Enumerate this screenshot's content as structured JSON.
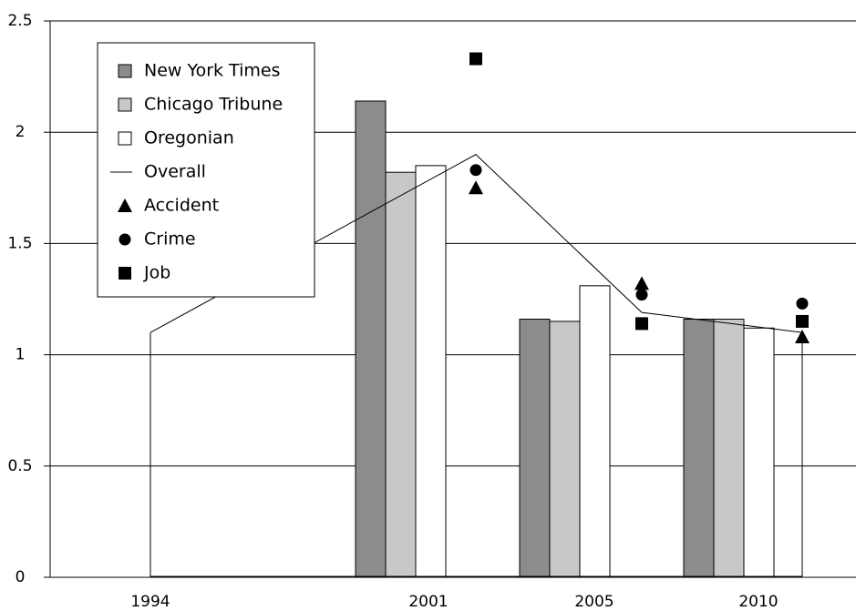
{
  "chart_data": {
    "type": "bar",
    "categories": [
      "1994",
      "2001",
      "2005",
      "2010"
    ],
    "ylim": [
      0,
      2.5
    ],
    "yticks": [
      0,
      0.5,
      1,
      1.5,
      2,
      2.5
    ],
    "grid": true,
    "legend": "upper left",
    "series": [
      {
        "name": "New York Times",
        "kind": "bar",
        "color": "#8c8c8c",
        "values": [
          null,
          2.14,
          1.16,
          1.16
        ]
      },
      {
        "name": "Chicago Tribune",
        "kind": "bar",
        "color": "#c8c8c8",
        "values": [
          null,
          1.82,
          1.15,
          1.16
        ]
      },
      {
        "name": "Oregonian",
        "kind": "bar",
        "color": "#ffffff",
        "values": [
          null,
          1.85,
          1.31,
          1.12
        ]
      },
      {
        "name": "Overall",
        "kind": "line",
        "color": "#000000",
        "values": [
          1.1,
          1.9,
          1.19,
          1.1
        ]
      },
      {
        "name": "Accident",
        "kind": "marker",
        "marker": "triangle",
        "color": "#000000",
        "values": [
          null,
          1.75,
          1.32,
          1.08
        ]
      },
      {
        "name": "Crime",
        "kind": "marker",
        "marker": "circle",
        "color": "#000000",
        "values": [
          null,
          1.83,
          1.27,
          1.23
        ]
      },
      {
        "name": "Job",
        "kind": "marker",
        "marker": "square",
        "color": "#000000",
        "values": [
          null,
          2.33,
          1.14,
          1.15
        ]
      }
    ]
  }
}
